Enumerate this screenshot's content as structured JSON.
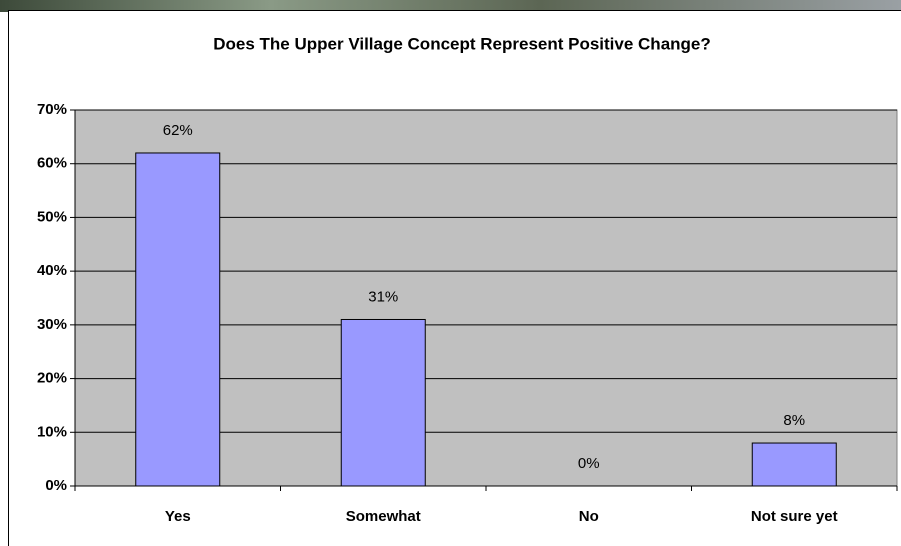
{
  "chart_data": {
    "type": "bar",
    "title": "Does The Upper Village Concept Represent Positive Change?",
    "categories": [
      "Yes",
      "Somewhat",
      "No",
      "Not sure yet"
    ],
    "values": [
      62,
      31,
      0,
      8
    ],
    "value_labels": [
      "62%",
      "31%",
      "0%",
      "8%"
    ],
    "color": "#9999ff",
    "ylim": [
      0,
      70
    ],
    "yticks": [
      {
        "value": 0,
        "label": "0%"
      },
      {
        "value": 10,
        "label": "10%"
      },
      {
        "value": 20,
        "label": "20%"
      },
      {
        "value": 30,
        "label": "30%"
      },
      {
        "value": 40,
        "label": "40%"
      },
      {
        "value": 50,
        "label": "50%"
      },
      {
        "value": 60,
        "label": "60%"
      },
      {
        "value": 70,
        "label": "70%"
      }
    ],
    "grid": true
  }
}
